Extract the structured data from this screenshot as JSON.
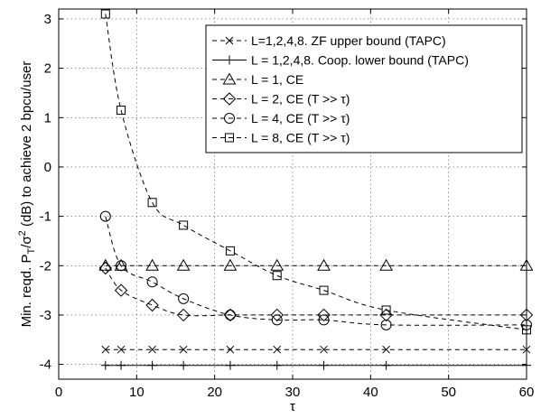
{
  "chart_data": {
    "type": "line",
    "title": "",
    "xlabel": "τ",
    "ylabel": "Min. reqd. P_T/σ^2 (dB) to achieve 2 bpcu/user",
    "ylabel_parts": {
      "pre": "Min. reqd. P",
      "sub": "T",
      "mid": "/σ",
      "sup": "2",
      "post": " (dB) to achieve 2 bpcu/user"
    },
    "xlim": [
      0,
      60
    ],
    "ylim": [
      -4.3,
      3.2
    ],
    "xticks": [
      0,
      10,
      20,
      30,
      40,
      50,
      60
    ],
    "yticks": [
      -4,
      -3,
      -2,
      -1,
      0,
      1,
      2,
      3
    ],
    "grid": true,
    "legend_position": "top-right",
    "series": [
      {
        "name": "L=1,2,4,8. ZF upper bound (TAPC)",
        "marker": "x",
        "linestyle": "dashed",
        "x": [
          6,
          8,
          12,
          16,
          22,
          28,
          34,
          42,
          60
        ],
        "y": [
          -3.7,
          -3.7,
          -3.7,
          -3.7,
          -3.7,
          -3.7,
          -3.7,
          -3.7,
          -3.7
        ]
      },
      {
        "name": "L = 1,2,4,8. Coop. lower bound (TAPC)",
        "marker": "plus",
        "linestyle": "solid",
        "x": [
          6,
          8,
          12,
          16,
          22,
          28,
          34,
          42,
          60
        ],
        "y": [
          -4.02,
          -4.02,
          -4.02,
          -4.02,
          -4.02,
          -4.02,
          -4.02,
          -4.02,
          -4.02
        ]
      },
      {
        "name": "L = 1, CE",
        "marker": "triangle",
        "linestyle": "dashed",
        "x": [
          6,
          8,
          12,
          16,
          22,
          28,
          34,
          42,
          60
        ],
        "y": [
          -2.0,
          -2.0,
          -2.0,
          -2.0,
          -2.0,
          -2.0,
          -2.0,
          -2.0,
          -2.0
        ]
      },
      {
        "name": "L = 2, CE (T >> τ)",
        "marker": "diamond",
        "linestyle": "dashed",
        "x": [
          6,
          8,
          12,
          16,
          22,
          28,
          34,
          42,
          60
        ],
        "y": [
          -2.05,
          -2.5,
          -2.8,
          -3.0,
          -3.0,
          -3.0,
          -3.0,
          -3.0,
          -3.0
        ]
      },
      {
        "name": "L = 4, CE (T >> τ)",
        "marker": "circle",
        "linestyle": "dashed",
        "x": [
          6,
          8,
          12,
          16,
          22,
          28,
          34,
          42,
          60
        ],
        "y": [
          -1.0,
          -2.0,
          -2.33,
          -2.67,
          -3.0,
          -3.1,
          -3.1,
          -3.2,
          -3.2
        ]
      },
      {
        "name": "L = 8, CE (T >> τ)",
        "marker": "square",
        "linestyle": "dashed",
        "x": [
          6,
          8,
          12,
          16,
          22,
          28,
          34,
          42,
          60
        ],
        "y": [
          3.1,
          1.15,
          -0.72,
          -1.18,
          -1.7,
          -2.2,
          -2.5,
          -2.9,
          -3.3
        ]
      }
    ]
  }
}
